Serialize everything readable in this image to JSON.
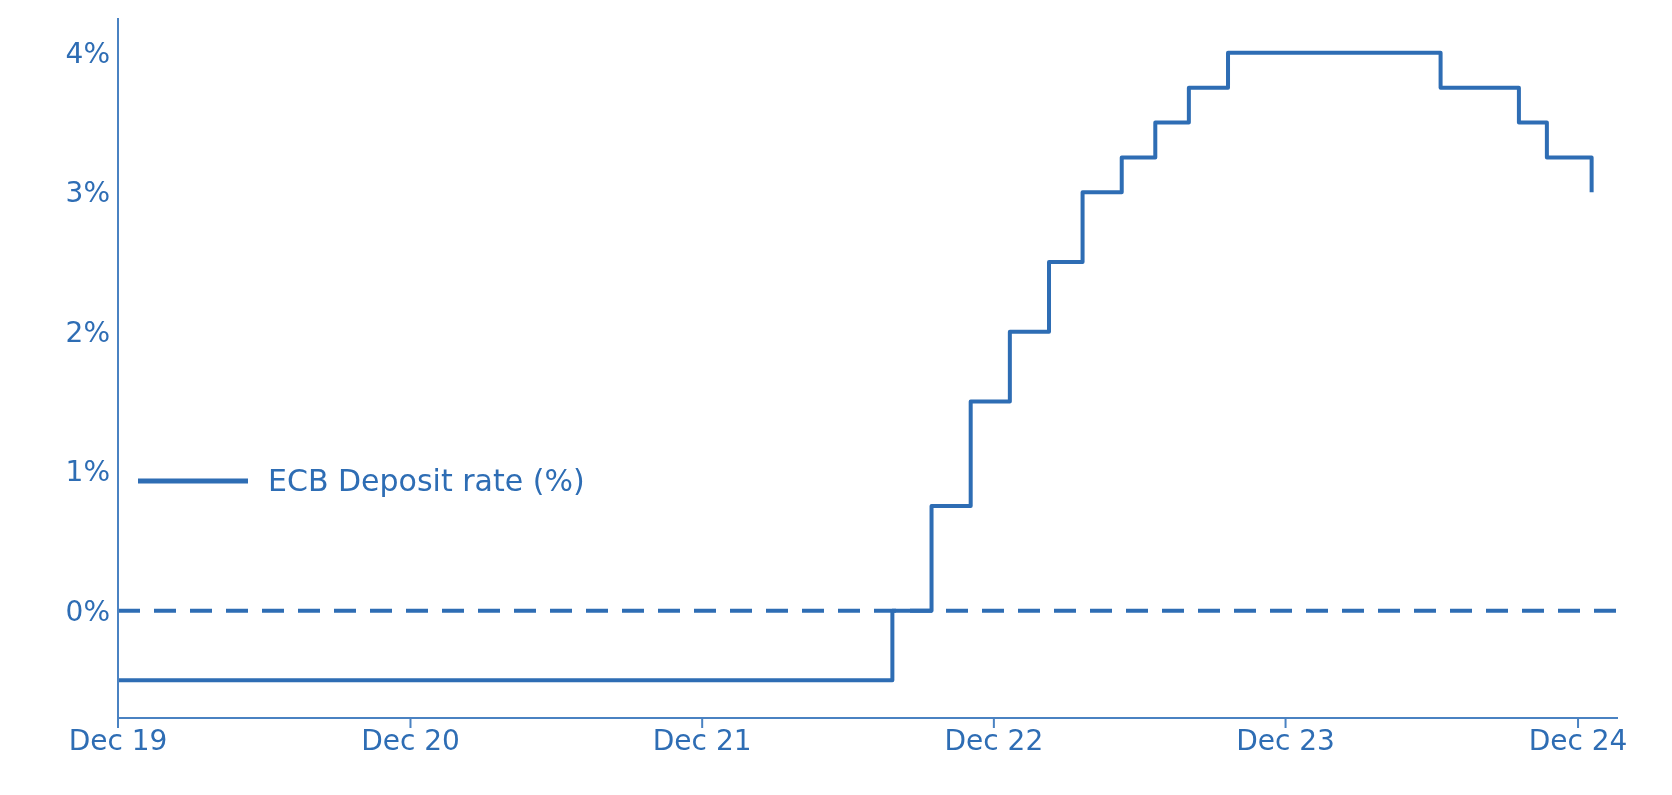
{
  "chart_data": {
    "type": "step",
    "x": [
      "2019-12-01",
      "2022-07-27",
      "2022-09-14",
      "2022-11-02",
      "2022-12-21",
      "2023-02-08",
      "2023-03-22",
      "2023-05-10",
      "2023-06-21",
      "2023-08-02",
      "2023-09-20",
      "2024-06-12",
      "2024-09-18",
      "2024-10-23",
      "2024-12-18"
    ],
    "series": [
      {
        "name": "ECB Deposit rate (%)",
        "color": "#2e6db4",
        "values": [
          -0.5,
          0,
          0.75,
          1.5,
          2,
          2.5,
          3,
          3.25,
          3.5,
          3.75,
          4,
          3.75,
          3.5,
          3.25,
          3
        ]
      }
    ],
    "xlim": [
      "2019-12-01",
      "2025-01-20"
    ],
    "xticks": [
      {
        "value": "2019-12-01",
        "label": "Dec 19"
      },
      {
        "value": "2020-12-01",
        "label": "Dec 20"
      },
      {
        "value": "2021-12-01",
        "label": "Dec 21"
      },
      {
        "value": "2022-12-01",
        "label": "Dec 22"
      },
      {
        "value": "2023-12-01",
        "label": "Dec 23"
      },
      {
        "value": "2024-12-01",
        "label": "Dec 24"
      }
    ],
    "ylim": [
      -0.77,
      4.25
    ],
    "yticks": [
      {
        "value": 0,
        "label": "0%"
      },
      {
        "value": 1,
        "label": "1%"
      },
      {
        "value": 2,
        "label": "2%"
      },
      {
        "value": 3,
        "label": "3%"
      },
      {
        "value": 4,
        "label": "4%"
      }
    ],
    "ref_lines": [
      {
        "axis": "y",
        "value": 0,
        "color": "#2e6db4",
        "line_style": "dashed"
      }
    ],
    "grid": false,
    "legend": "left",
    "line_style": "solid"
  }
}
